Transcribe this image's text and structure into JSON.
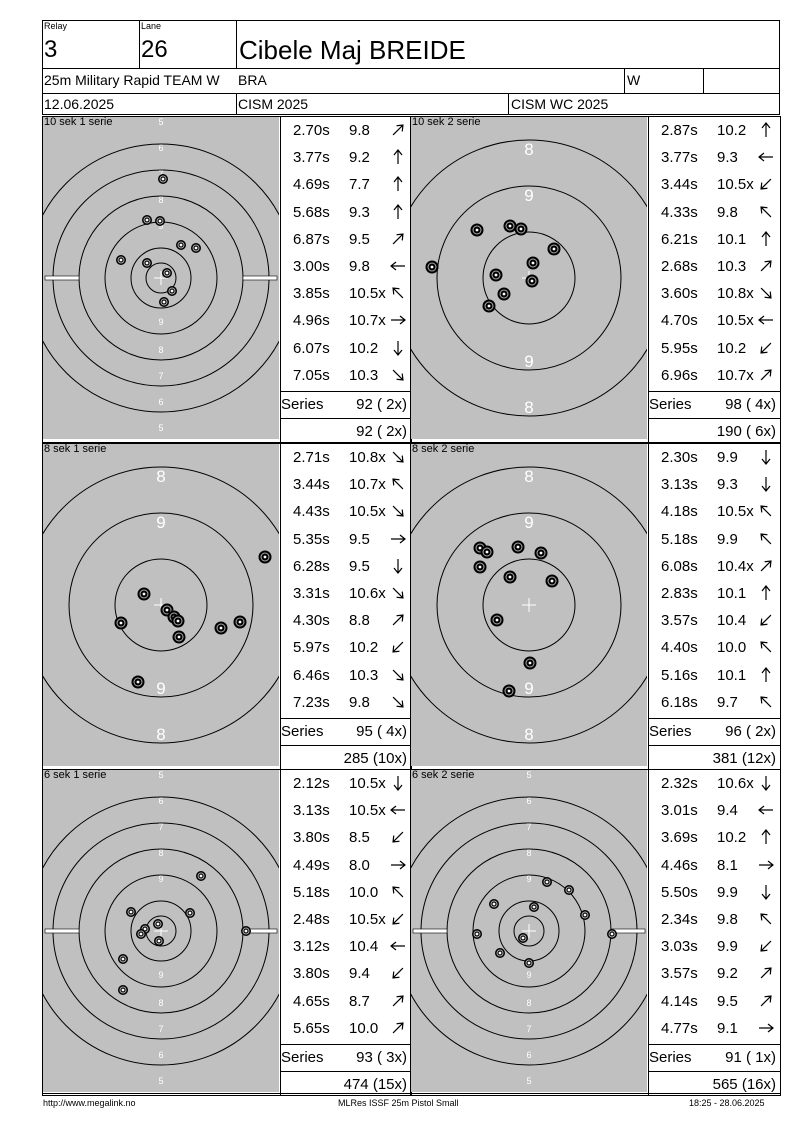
{
  "header": {
    "relay_label": "Relay",
    "relay_value": "3",
    "lane_label": "Lane",
    "lane_value": "26",
    "athlete_name": "Cibele Maj BREIDE",
    "event": "25m Military Rapid TEAM W",
    "nation": "BRA",
    "gender": "W",
    "date": "12.06.2025",
    "competition": "CISM 2025",
    "championship": "CISM WC 2025"
  },
  "series": [
    {
      "title": "10 sek 1 serie",
      "target_type": "rings-5-10",
      "shots": [
        {
          "time": "2.70s",
          "value": "9.8",
          "dir": "ne"
        },
        {
          "time": "3.77s",
          "value": "9.2",
          "dir": "n"
        },
        {
          "time": "4.69s",
          "value": "7.7",
          "dir": "n"
        },
        {
          "time": "5.68s",
          "value": "9.3",
          "dir": "n"
        },
        {
          "time": "6.87s",
          "value": "9.5",
          "dir": "ne"
        },
        {
          "time": "3.00s",
          "value": "9.8",
          "dir": "w"
        },
        {
          "time": "3.85s",
          "value": "10.5x",
          "dir": "nw"
        },
        {
          "time": "4.96s",
          "value": "10.7x",
          "dir": "e"
        },
        {
          "time": "6.07s",
          "value": "10.2",
          "dir": "s"
        },
        {
          "time": "7.05s",
          "value": "10.3",
          "dir": "se"
        }
      ],
      "series_label": "Series",
      "series_total": "92 ( 2x)",
      "running_total": "92 ( 2x)"
    },
    {
      "title": "10 sek 2 serie",
      "target_type": "rings-8-10",
      "shots": [
        {
          "time": "2.87s",
          "value": "10.2",
          "dir": "n"
        },
        {
          "time": "3.77s",
          "value": "9.3",
          "dir": "w"
        },
        {
          "time": "3.44s",
          "value": "10.5x",
          "dir": "sw"
        },
        {
          "time": "4.33s",
          "value": "9.8",
          "dir": "nw"
        },
        {
          "time": "6.21s",
          "value": "10.1",
          "dir": "n"
        },
        {
          "time": "2.68s",
          "value": "10.3",
          "dir": "ne"
        },
        {
          "time": "3.60s",
          "value": "10.8x",
          "dir": "se"
        },
        {
          "time": "4.70s",
          "value": "10.5x",
          "dir": "w"
        },
        {
          "time": "5.95s",
          "value": "10.2",
          "dir": "sw"
        },
        {
          "time": "6.96s",
          "value": "10.7x",
          "dir": "ne"
        }
      ],
      "series_label": "Series",
      "series_total": "98 ( 4x)",
      "running_total": "190 ( 6x)"
    },
    {
      "title": "8 sek 1 serie",
      "target_type": "rings-8-10",
      "shots": [
        {
          "time": "2.71s",
          "value": "10.8x",
          "dir": "se"
        },
        {
          "time": "3.44s",
          "value": "10.7x",
          "dir": "nw"
        },
        {
          "time": "4.43s",
          "value": "10.5x",
          "dir": "se"
        },
        {
          "time": "5.35s",
          "value": "9.5",
          "dir": "e"
        },
        {
          "time": "6.28s",
          "value": "9.5",
          "dir": "s"
        },
        {
          "time": "3.31s",
          "value": "10.6x",
          "dir": "se"
        },
        {
          "time": "4.30s",
          "value": "8.8",
          "dir": "ne"
        },
        {
          "time": "5.97s",
          "value": "10.2",
          "dir": "sw"
        },
        {
          "time": "6.46s",
          "value": "10.3",
          "dir": "se"
        },
        {
          "time": "7.23s",
          "value": "9.8",
          "dir": "se"
        }
      ],
      "series_label": "Series",
      "series_total": "95 ( 4x)",
      "running_total": "285 (10x)"
    },
    {
      "title": "8 sek 2 serie",
      "target_type": "rings-8-10",
      "shots": [
        {
          "time": "2.30s",
          "value": "9.9",
          "dir": "s"
        },
        {
          "time": "3.13s",
          "value": "9.3",
          "dir": "s"
        },
        {
          "time": "4.18s",
          "value": "10.5x",
          "dir": "nw"
        },
        {
          "time": "5.18s",
          "value": "9.9",
          "dir": "nw"
        },
        {
          "time": "6.08s",
          "value": "10.4x",
          "dir": "ne"
        },
        {
          "time": "2.83s",
          "value": "10.1",
          "dir": "n"
        },
        {
          "time": "3.57s",
          "value": "10.4",
          "dir": "sw"
        },
        {
          "time": "4.40s",
          "value": "10.0",
          "dir": "nw"
        },
        {
          "time": "5.16s",
          "value": "10.1",
          "dir": "n"
        },
        {
          "time": "6.18s",
          "value": "9.7",
          "dir": "nw"
        }
      ],
      "series_label": "Series",
      "series_total": "96 ( 2x)",
      "running_total": "381 (12x)"
    },
    {
      "title": "6 sek 1 serie",
      "target_type": "rings-5-10",
      "shots": [
        {
          "time": "2.12s",
          "value": "10.5x",
          "dir": "s"
        },
        {
          "time": "3.13s",
          "value": "10.5x",
          "dir": "w"
        },
        {
          "time": "3.80s",
          "value": "8.5",
          "dir": "sw"
        },
        {
          "time": "4.49s",
          "value": "8.0",
          "dir": "e"
        },
        {
          "time": "5.18s",
          "value": "10.0",
          "dir": "nw"
        },
        {
          "time": "2.48s",
          "value": "10.5x",
          "dir": "sw"
        },
        {
          "time": "3.12s",
          "value": "10.4",
          "dir": "w"
        },
        {
          "time": "3.80s",
          "value": "9.4",
          "dir": "sw"
        },
        {
          "time": "4.65s",
          "value": "8.7",
          "dir": "ne"
        },
        {
          "time": "5.65s",
          "value": "10.0",
          "dir": "ne"
        }
      ],
      "series_label": "Series",
      "series_total": "93 ( 3x)",
      "running_total": "474 (15x)"
    },
    {
      "title": "6 sek 2 serie",
      "target_type": "rings-5-10",
      "shots": [
        {
          "time": "2.32s",
          "value": "10.6x",
          "dir": "s"
        },
        {
          "time": "3.01s",
          "value": "9.4",
          "dir": "w"
        },
        {
          "time": "3.69s",
          "value": "10.2",
          "dir": "n"
        },
        {
          "time": "4.46s",
          "value": "8.1",
          "dir": "e"
        },
        {
          "time": "5.50s",
          "value": "9.9",
          "dir": "s"
        },
        {
          "time": "2.34s",
          "value": "9.8",
          "dir": "nw"
        },
        {
          "time": "3.03s",
          "value": "9.9",
          "dir": "sw"
        },
        {
          "time": "3.57s",
          "value": "9.2",
          "dir": "ne"
        },
        {
          "time": "4.14s",
          "value": "9.5",
          "dir": "ne"
        },
        {
          "time": "4.77s",
          "value": "9.1",
          "dir": "e"
        }
      ],
      "series_label": "Series",
      "series_total": "91 ( 1x)",
      "running_total": "565 (16x)"
    }
  ],
  "footer": {
    "left": "http://www.megalink.no",
    "center": "MLRes ISSF 25m Pistol Small",
    "right": "18:25 - 28.06.2025"
  },
  "colors": {
    "target_bg": "#c0c0c0",
    "ring": "#000000"
  }
}
